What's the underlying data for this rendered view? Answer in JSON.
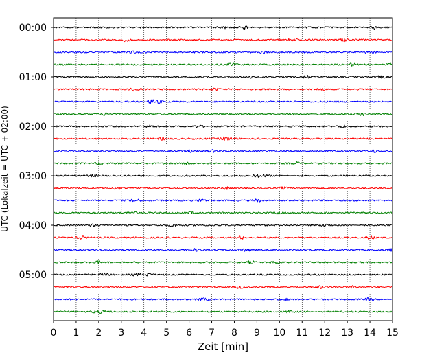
{
  "chart_data": {
    "type": "line",
    "title": "",
    "xlabel": "Zeit  [min]",
    "ylabel": "UTC (Lokalzeit = UTC + 02:00)",
    "xlim": [
      0,
      15
    ],
    "x_ticks": [
      0,
      1,
      2,
      3,
      4,
      5,
      6,
      7,
      8,
      9,
      10,
      11,
      12,
      13,
      14,
      15
    ],
    "y_tick_labels": [
      "00:00",
      "01:00",
      "02:00",
      "03:00",
      "04:00",
      "05:00"
    ],
    "y_tick_rows": [
      0,
      4,
      8,
      12,
      16,
      20
    ],
    "row_count": 24,
    "row_interval_minutes": 15,
    "start_time": "00:00",
    "grid": "vertical dotted at each minute",
    "series_colors": [
      "#000000",
      "#ff0000",
      "#0000ff",
      "#008000"
    ],
    "trace_type": "seismogram"
  }
}
